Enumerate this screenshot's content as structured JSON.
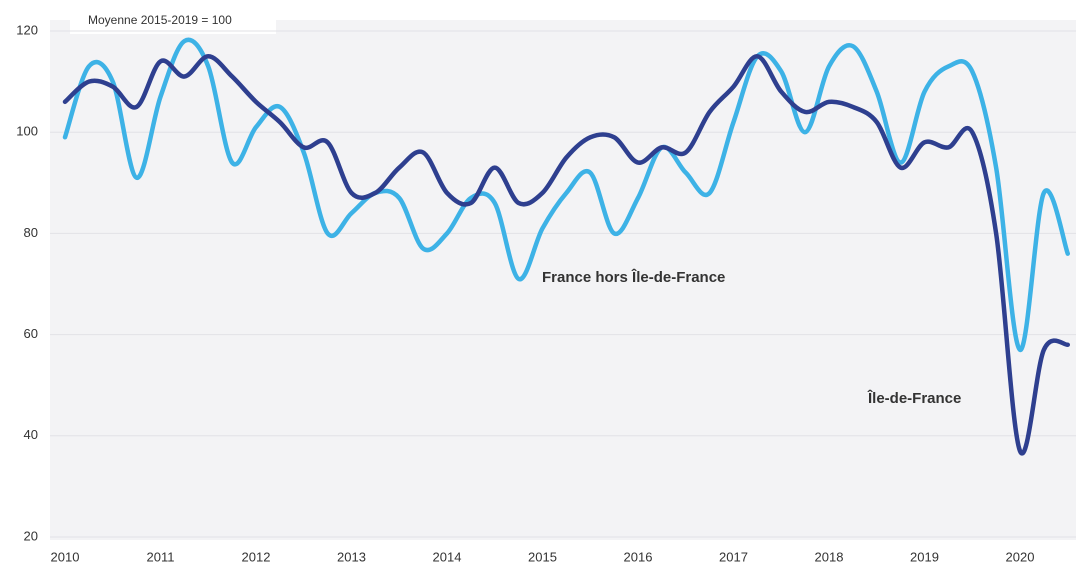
{
  "chart_data": {
    "type": "line",
    "annotations": [
      "Moyenne 2015-2019 = 100"
    ],
    "categories": [
      "2010",
      null,
      null,
      null,
      "2011",
      null,
      null,
      null,
      "2012",
      null,
      null,
      null,
      "2013",
      null,
      null,
      null,
      "2014",
      null,
      null,
      null,
      "2015",
      null,
      null,
      null,
      "2016",
      null,
      null,
      null,
      "2017",
      null,
      null,
      null,
      "2018",
      null,
      null,
      null,
      "2019",
      null,
      null,
      null,
      "2020",
      null,
      null
    ],
    "series": [
      {
        "name": "France hors Île-de-France",
        "color": "#3db2e6",
        "values": [
          99,
          113,
          110,
          91,
          107,
          118,
          113,
          94,
          101,
          105,
          96,
          80,
          84,
          88,
          87,
          77,
          80,
          87,
          86,
          71,
          81,
          88,
          92,
          80,
          87,
          97,
          92,
          88,
          102,
          115,
          112,
          100,
          113,
          117,
          108,
          94,
          108,
          113,
          112,
          93,
          57,
          88,
          76
        ]
      },
      {
        "name": "Île-de-France",
        "color": "#2e3f8f",
        "values": [
          106,
          110,
          109,
          105,
          114,
          111,
          115,
          111,
          106,
          102,
          97,
          98,
          88,
          88,
          93,
          96,
          88,
          86,
          93,
          86,
          88,
          95,
          99,
          99,
          94,
          97,
          96,
          104,
          109,
          115,
          108,
          104,
          106,
          105,
          102,
          93,
          98,
          97,
          100,
          80,
          37,
          57,
          58
        ]
      }
    ],
    "ylim": [
      20,
      120
    ],
    "yticks": [
      20,
      40,
      60,
      80,
      100,
      120
    ],
    "grid": true
  }
}
